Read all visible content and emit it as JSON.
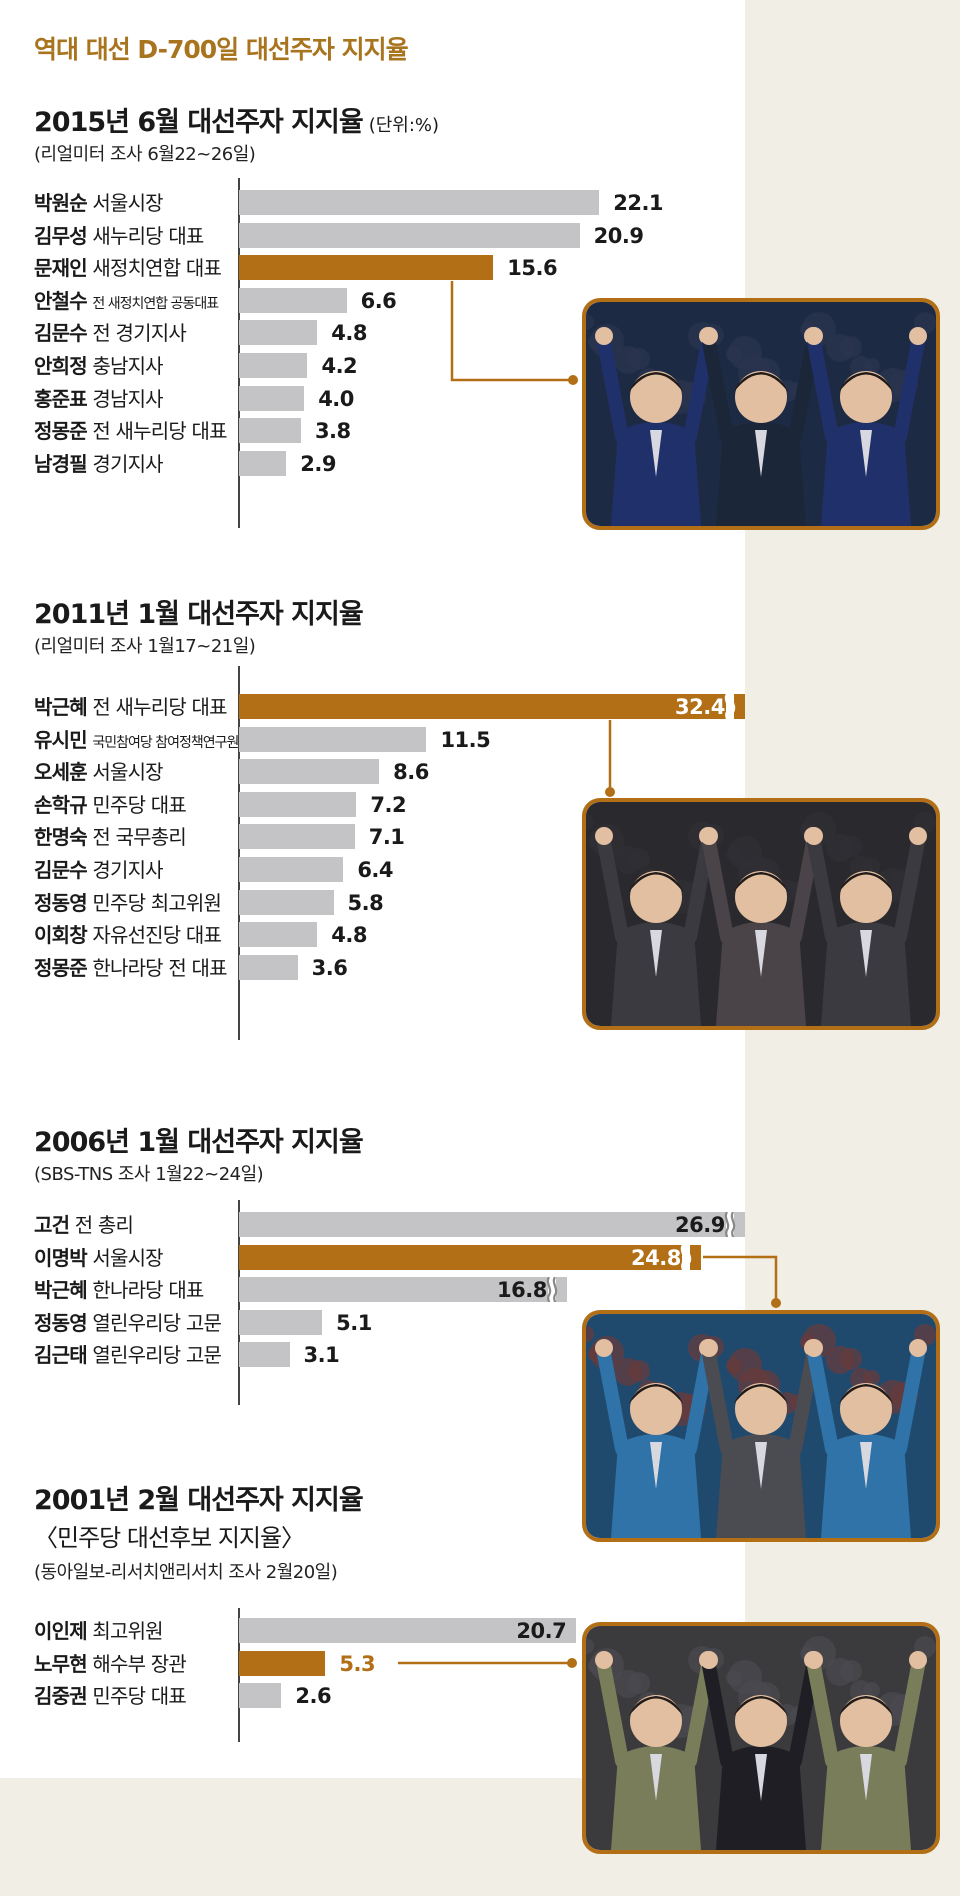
{
  "title": "역대 대선 D-700일 대선주자 지지율",
  "colors": {
    "highlight": "#b26f15",
    "bar": "#c4c4c6",
    "title": "#a8741e"
  },
  "chart_data": [
    {
      "type": "bar",
      "orientation": "horizontal",
      "title": "2015년 6월 대선주자 지지율",
      "unit": "(단위:%)",
      "subtitle": "(리얼미터 조사 6월22~26일)",
      "rows": [
        {
          "name": "박원순",
          "role": "서울시장",
          "value": 22.1
        },
        {
          "name": "김무성",
          "role": "새누리당 대표",
          "value": 20.9
        },
        {
          "name": "문재인",
          "role": "새정치연합 대표",
          "value": 15.6,
          "highlight": true
        },
        {
          "name": "안철수",
          "role": "전 새정치연합 공동대표",
          "value": 6.6,
          "small": true
        },
        {
          "name": "김문수",
          "role": "전 경기지사",
          "value": 4.8
        },
        {
          "name": "안희정",
          "role": "충남지사",
          "value": 4.2
        },
        {
          "name": "홍준표",
          "role": "경남지사",
          "value": 4.0
        },
        {
          "name": "정몽준",
          "role": "전 새누리당 대표",
          "value": 3.8
        },
        {
          "name": "남경필",
          "role": "경기지사",
          "value": 2.9
        }
      ]
    },
    {
      "type": "bar",
      "orientation": "horizontal",
      "title": "2011년 1월 대선주자 지지율",
      "subtitle": "(리얼미터 조사 1월17~21일)",
      "rows": [
        {
          "name": "박근혜",
          "role": "전 새누리당 대표",
          "value": 32.4,
          "highlight": true,
          "truncated": true
        },
        {
          "name": "유시민",
          "role": "국민참여당 참여정책연구원장",
          "value": 11.5,
          "small": true
        },
        {
          "name": "오세훈",
          "role": "서울시장",
          "value": 8.6
        },
        {
          "name": "손학규",
          "role": "민주당 대표",
          "value": 7.2
        },
        {
          "name": "한명숙",
          "role": "전 국무총리",
          "value": 7.1
        },
        {
          "name": "김문수",
          "role": "경기지사",
          "value": 6.4
        },
        {
          "name": "정동영",
          "role": "민주당 최고위원",
          "value": 5.8
        },
        {
          "name": "이회창",
          "role": "자유선진당 대표",
          "value": 4.8
        },
        {
          "name": "정몽준",
          "role": "한나라당 전 대표",
          "value": 3.6
        }
      ]
    },
    {
      "type": "bar",
      "orientation": "horizontal",
      "title": "2006년 1월 대선주자 지지율",
      "subtitle": "(SBS-TNS 조사 1월22~24일)",
      "rows": [
        {
          "name": "고건",
          "role": "전 총리",
          "value": 26.9,
          "truncated": true
        },
        {
          "name": "이명박",
          "role": "서울시장",
          "value": 24.8,
          "highlight": true,
          "truncated": true
        },
        {
          "name": "박근혜",
          "role": "한나라당 대표",
          "value": 16.8,
          "truncated": true
        },
        {
          "name": "정동영",
          "role": "열린우리당 고문",
          "value": 5.1
        },
        {
          "name": "김근태",
          "role": "열린우리당 고문",
          "value": 3.1
        }
      ]
    },
    {
      "type": "bar",
      "orientation": "horizontal",
      "title": "2001년 2월 대선주자 지지율",
      "subtitle2": "〈민주당 대선후보 지지율〉",
      "subtitle": "(동아일보-리서치앤리서치 조사 2월20일)",
      "rows": [
        {
          "name": "이인제",
          "role": "최고위원",
          "value": 20.7
        },
        {
          "name": "노무현",
          "role": "해수부 장관",
          "value": 5.3,
          "highlight": true
        },
        {
          "name": "김중권",
          "role": "민주당 대표",
          "value": 2.6
        }
      ]
    }
  ]
}
